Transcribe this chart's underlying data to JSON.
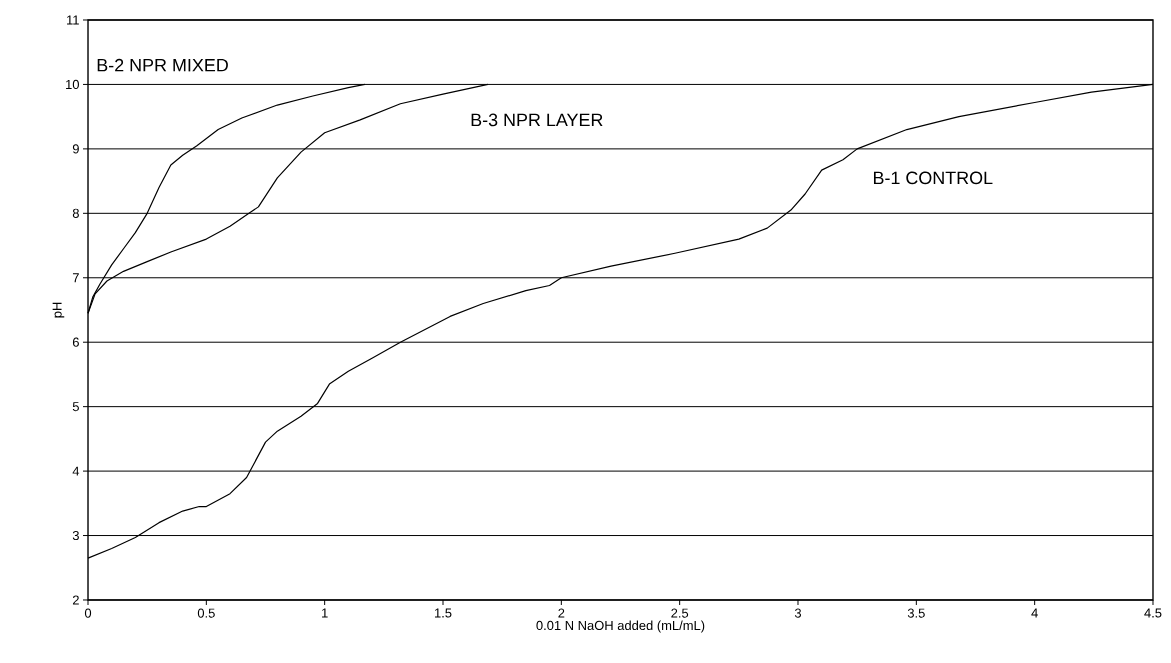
{
  "chart_data": {
    "type": "line",
    "xlabel": "0.01 N NaOH added (mL/mL)",
    "ylabel": "pH",
    "xlim": [
      0,
      4.5
    ],
    "ylim": [
      2,
      11
    ],
    "xticks": [
      0,
      0.5,
      1,
      1.5,
      2,
      2.5,
      3,
      3.5,
      4,
      4.5
    ],
    "yticks": [
      2,
      3,
      4,
      5,
      6,
      7,
      8,
      9,
      10,
      11
    ],
    "grid": "y",
    "line_style": "solid",
    "marker": "none",
    "series": [
      {
        "name": "B-2 NPR MIXED",
        "color": "#000000",
        "x": [
          0,
          0.02,
          0.05,
          0.1,
          0.15,
          0.2,
          0.25,
          0.3,
          0.35,
          0.4,
          0.46,
          0.55,
          0.65,
          0.8,
          0.95,
          1.1,
          1.17
        ],
        "values": [
          6.45,
          6.7,
          6.9,
          7.2,
          7.45,
          7.7,
          8.0,
          8.4,
          8.75,
          8.9,
          9.05,
          9.3,
          9.48,
          9.68,
          9.82,
          9.95,
          10
        ]
      },
      {
        "name": "B-3 NPR LAYER",
        "color": "#000000",
        "x": [
          0,
          0.03,
          0.08,
          0.15,
          0.25,
          0.35,
          0.5,
          0.6,
          0.68,
          0.72,
          0.8,
          0.9,
          1.0,
          1.15,
          1.32,
          1.5,
          1.69
        ],
        "values": [
          6.45,
          6.75,
          6.95,
          7.1,
          7.25,
          7.4,
          7.6,
          7.8,
          8.0,
          8.1,
          8.55,
          8.95,
          9.25,
          9.45,
          9.7,
          9.85,
          10
        ]
      },
      {
        "name": "B-1 CONTROL",
        "color": "#000000",
        "x": [
          0,
          0.1,
          0.2,
          0.3,
          0.4,
          0.47,
          0.5,
          0.6,
          0.67,
          0.75,
          0.8,
          0.9,
          0.97,
          1.02,
          1.1,
          1.2,
          1.32,
          1.53,
          1.67,
          1.85,
          1.95,
          2.0,
          2.21,
          2.48,
          2.75,
          2.87,
          2.97,
          3.03,
          3.1,
          3.19,
          3.25,
          3.46,
          3.68,
          4.0,
          4.24,
          4.5
        ],
        "values": [
          2.65,
          2.8,
          2.97,
          3.2,
          3.38,
          3.45,
          3.45,
          3.65,
          3.9,
          4.45,
          4.62,
          4.85,
          5.05,
          5.35,
          5.55,
          5.75,
          6.0,
          6.4,
          6.6,
          6.8,
          6.88,
          7.0,
          7.18,
          7.38,
          7.6,
          7.77,
          8.05,
          8.3,
          8.67,
          8.83,
          9.0,
          9.3,
          9.5,
          9.72,
          9.88,
          10
        ]
      }
    ]
  }
}
